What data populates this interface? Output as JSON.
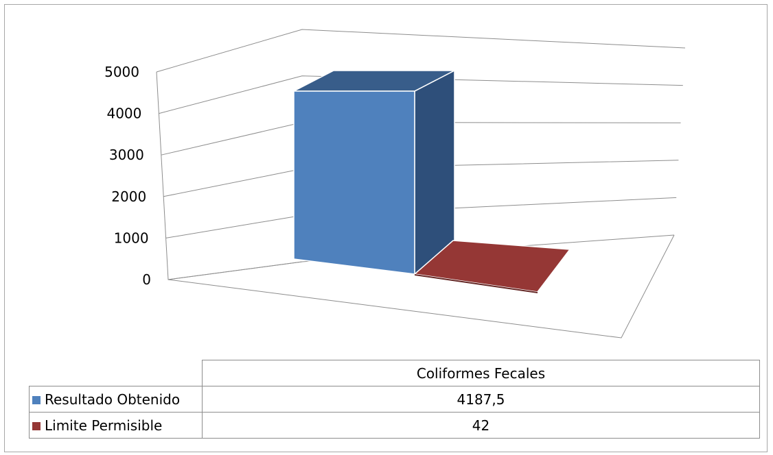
{
  "chart_data": {
    "type": "bar",
    "title": "",
    "xlabel": "",
    "ylabel": "",
    "categories": [
      "Coliformes Fecales"
    ],
    "series": [
      {
        "name": "Resultado Obtenido",
        "values": [
          4187.5
        ],
        "display": "4187,5",
        "color": "#4f81bd",
        "side_color": "#2e4f7a",
        "top_color": "#385d8a"
      },
      {
        "name": "Limite Permisible",
        "values": [
          42
        ],
        "display": "42",
        "color": "#953735",
        "side_color": "#632523",
        "top_color": "#953735"
      }
    ],
    "yticks": [
      "0",
      "1000",
      "2000",
      "3000",
      "4000",
      "5000"
    ],
    "ylim": [
      0,
      5000
    ],
    "grid": true,
    "view": "3d",
    "legend": "data-table"
  }
}
